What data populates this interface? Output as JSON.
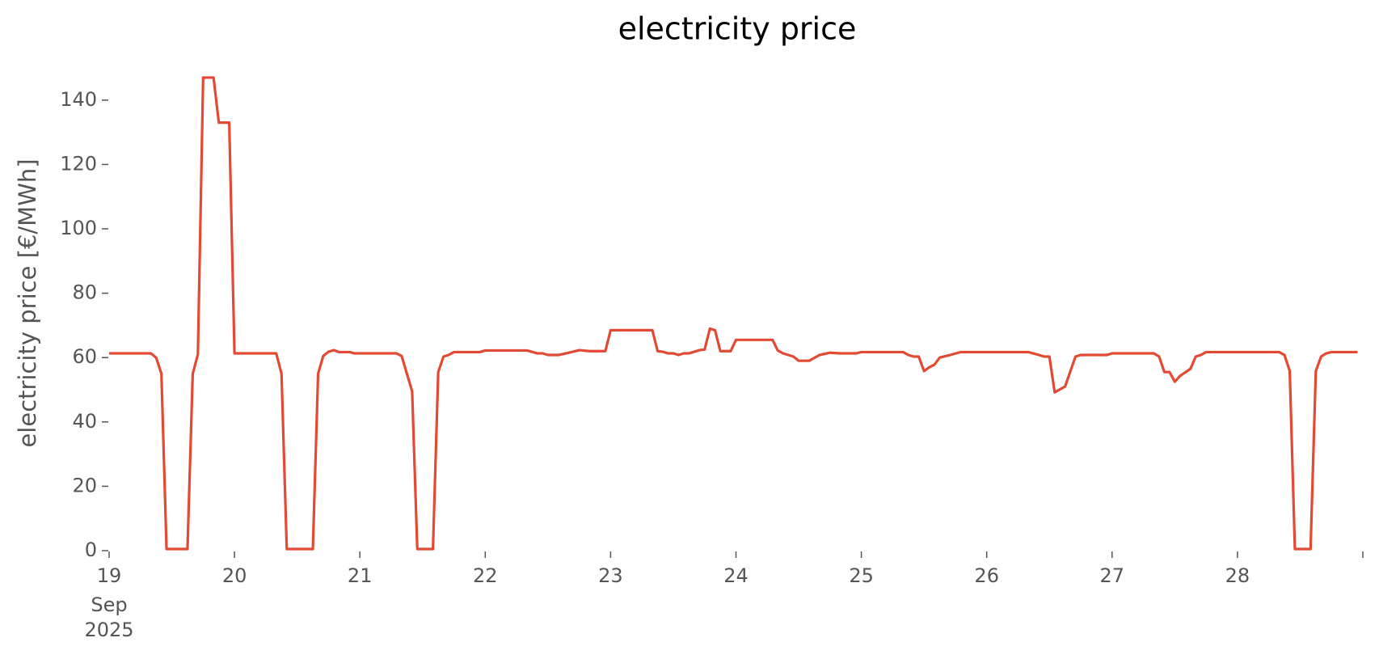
{
  "chart_data": {
    "type": "line",
    "title": "electricity price",
    "y_label": "electricity price [€/MWh]",
    "x_tick_sublabels": [
      "Sep",
      "2025"
    ],
    "xlim": [
      19,
      29
    ],
    "xticks": [
      19,
      20,
      21,
      22,
      23,
      24,
      25,
      26,
      27,
      28,
      {
        "value": 29,
        "label": null
      }
    ],
    "ylim": [
      0,
      150
    ],
    "yticks": [
      0,
      20,
      40,
      60,
      80,
      100,
      120,
      140
    ],
    "grid": false,
    "x": [
      19,
      19.333,
      19.375,
      19.417,
      19.458,
      19.625,
      19.667,
      19.708,
      19.75,
      19.833,
      19.875,
      19.958,
      20,
      20.333,
      20.375,
      20.417,
      20.625,
      20.667,
      20.708,
      20.75,
      20.792,
      20.833,
      20.917,
      20.958,
      21.292,
      21.333,
      21.417,
      21.458,
      21.583,
      21.625,
      21.667,
      21.708,
      21.75,
      21.958,
      22,
      22.333,
      22.417,
      22.458,
      22.5,
      22.583,
      22.667,
      22.75,
      22.833,
      22.958,
      23,
      23.333,
      23.375,
      23.417,
      23.458,
      23.5,
      23.542,
      23.583,
      23.625,
      23.667,
      23.708,
      23.75,
      23.792,
      23.833,
      23.875,
      23.958,
      24,
      24.292,
      24.333,
      24.375,
      24.417,
      24.458,
      24.5,
      24.583,
      24.667,
      24.75,
      24.833,
      24.958,
      25,
      25.333,
      25.375,
      25.417,
      25.458,
      25.5,
      25.542,
      25.583,
      25.625,
      25.708,
      25.792,
      26.333,
      26.417,
      26.458,
      26.5,
      26.542,
      26.625,
      26.708,
      26.75,
      26.958,
      27,
      27.333,
      27.375,
      27.417,
      27.458,
      27.5,
      27.542,
      27.625,
      27.667,
      27.708,
      27.75,
      28.333,
      28.375,
      28.417,
      28.458,
      28.583,
      28.625,
      28.667,
      28.708,
      28.75,
      28.958
    ],
    "series": [
      {
        "name": "electricity price",
        "color": "#e24a33",
        "values": [
          61.3,
          61.3,
          60,
          55,
          0.5,
          0.5,
          55,
          61,
          147,
          147,
          133,
          133,
          61.3,
          61.3,
          55,
          0.5,
          0.5,
          55,
          60.5,
          61.8,
          62.3,
          61.7,
          61.7,
          61.3,
          61.3,
          60.5,
          49.5,
          0.5,
          0.5,
          55.5,
          60.3,
          60.8,
          61.7,
          61.7,
          62.2,
          62.2,
          61.3,
          61.3,
          60.8,
          60.8,
          61.5,
          62.3,
          62,
          62,
          68.5,
          68.5,
          62,
          61.8,
          61.3,
          61.3,
          60.8,
          61.3,
          61.3,
          61.8,
          62.3,
          62.5,
          69,
          68.5,
          62,
          62,
          65.5,
          65.5,
          62.2,
          61.3,
          60.8,
          60.3,
          59,
          59,
          60.8,
          61.5,
          61.3,
          61.3,
          61.7,
          61.7,
          60.8,
          60.3,
          60.3,
          55.8,
          57,
          57.8,
          60,
          60.8,
          61.7,
          61.7,
          60.8,
          60.3,
          60.3,
          49.2,
          51,
          60.3,
          60.8,
          60.8,
          61.3,
          61.3,
          60.3,
          55.5,
          55.5,
          52.5,
          54.3,
          56.5,
          60.3,
          60.8,
          61.7,
          61.7,
          60.8,
          55.8,
          0.5,
          0.5,
          55.8,
          60.3,
          61.3,
          61.7,
          61.7
        ]
      }
    ]
  }
}
